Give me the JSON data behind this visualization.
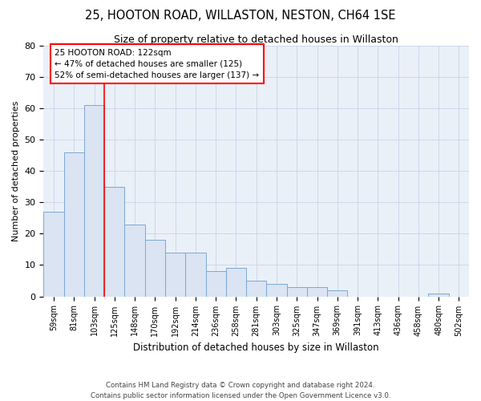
{
  "title": "25, HOOTON ROAD, WILLASTON, NESTON, CH64 1SE",
  "subtitle": "Size of property relative to detached houses in Willaston",
  "xlabel": "Distribution of detached houses by size in Willaston",
  "ylabel": "Number of detached properties",
  "bar_color": "#dae4f2",
  "bar_edge_color": "#7aa8d4",
  "categories": [
    "59sqm",
    "81sqm",
    "103sqm",
    "125sqm",
    "148sqm",
    "170sqm",
    "192sqm",
    "214sqm",
    "236sqm",
    "258sqm",
    "281sqm",
    "303sqm",
    "325sqm",
    "347sqm",
    "369sqm",
    "391sqm",
    "413sqm",
    "436sqm",
    "458sqm",
    "480sqm",
    "502sqm"
  ],
  "values": [
    27,
    46,
    61,
    35,
    23,
    18,
    14,
    14,
    8,
    9,
    5,
    4,
    3,
    3,
    2,
    0,
    0,
    0,
    0,
    1,
    0
  ],
  "ylim": [
    0,
    80
  ],
  "yticks": [
    0,
    10,
    20,
    30,
    40,
    50,
    60,
    70,
    80
  ],
  "red_line_x": 2.5,
  "annotation_text": "25 HOOTON ROAD: 122sqm\n← 47% of detached houses are smaller (125)\n52% of semi-detached houses are larger (137) →",
  "footer_line1": "Contains HM Land Registry data © Crown copyright and database right 2024.",
  "footer_line2": "Contains public sector information licensed under the Open Government Licence v3.0.",
  "background_color": "#ffffff",
  "axes_bg_color": "#eaf0f8",
  "grid_color": "#c8d4e8"
}
